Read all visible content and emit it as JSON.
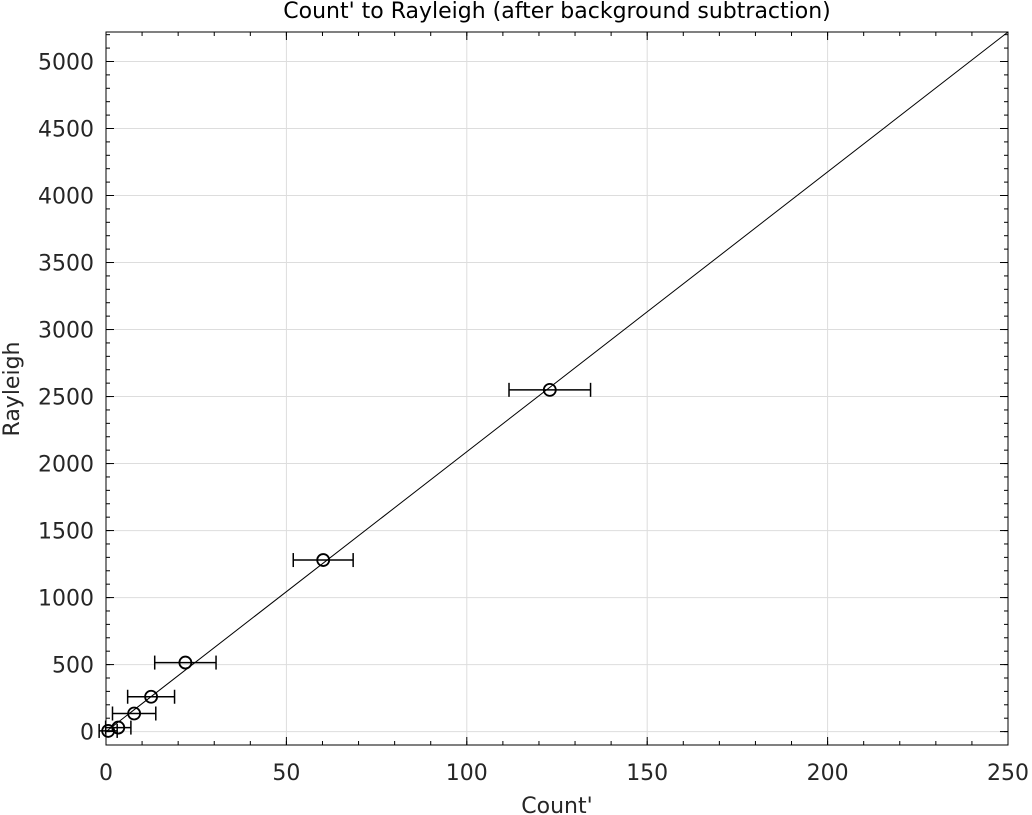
{
  "chart_data": {
    "type": "scatter",
    "title": "Count' to Rayleigh (after background subtraction)",
    "xlabel": "Count'",
    "ylabel": "Rayleigh",
    "xlim": [
      0,
      250
    ],
    "ylim": [
      -100,
      5220
    ],
    "x_ticks": [
      "0",
      "50",
      "100",
      "150",
      "200",
      "250"
    ],
    "y_ticks": [
      "0",
      "500",
      "1000",
      "1500",
      "2000",
      "2500",
      "3000",
      "3500",
      "4000",
      "4500",
      "5000"
    ],
    "grid": true,
    "points": [
      {
        "x": 0.6,
        "y": 5,
        "xerr": 2.5
      },
      {
        "x": 3.4,
        "y": 30,
        "xerr": 3.5
      },
      {
        "x": 7.8,
        "y": 135,
        "xerr": 6.0
      },
      {
        "x": 12.5,
        "y": 260,
        "xerr": 6.5
      },
      {
        "x": 22.0,
        "y": 515,
        "xerr": 8.5
      },
      {
        "x": 60.2,
        "y": 1280,
        "xerr": 8.3
      },
      {
        "x": 123.0,
        "y": 2550,
        "xerr": 11.3
      }
    ],
    "fit_line": {
      "x": [
        0,
        250
      ],
      "y": [
        0,
        5220
      ]
    },
    "colors": {
      "marker": "#000000",
      "line": "#000000",
      "grid": "#dddddd",
      "axis": "#000000"
    }
  }
}
